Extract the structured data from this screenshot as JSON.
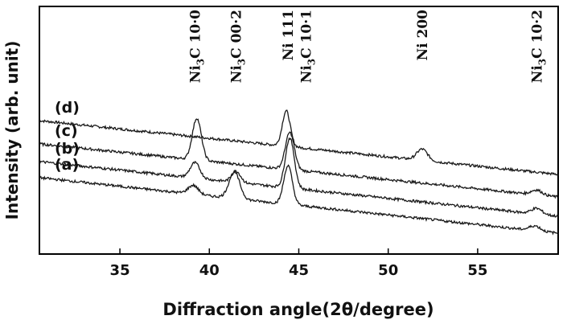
{
  "chart_data": {
    "type": "line",
    "xlabel": "Diffraction angle(2θ/degree)",
    "ylabel": "Intensity (arb. unit)",
    "xlim": [
      30.5,
      59.5
    ],
    "xticks": [
      35,
      40,
      45,
      50,
      55
    ],
    "y_ticks_shown": false,
    "grid": false,
    "legend": "none",
    "peak_labels": [
      {
        "parts": [
          [
            "Ni",
            ""
          ],
          [
            "3",
            "sub"
          ],
          [
            "C 10·0",
            ""
          ]
        ],
        "x": 39.2
      },
      {
        "parts": [
          [
            "Ni",
            ""
          ],
          [
            "3",
            "sub"
          ],
          [
            "C 00·2",
            ""
          ]
        ],
        "x": 41.5
      },
      {
        "parts": [
          [
            "Ni 111",
            ""
          ]
        ],
        "x": 44.4
      },
      {
        "parts": [
          [
            "Ni",
            ""
          ],
          [
            "3",
            "sub"
          ],
          [
            "C 10·1",
            ""
          ]
        ],
        "x": 45.4
      },
      {
        "parts": [
          [
            "Ni 200",
            ""
          ]
        ],
        "x": 51.9
      },
      {
        "parts": [
          [
            "Ni",
            ""
          ],
          [
            "3",
            "sub"
          ],
          [
            "C 10·2",
            ""
          ]
        ],
        "x": 58.3
      }
    ],
    "series": [
      {
        "name": "(d)",
        "baseline": [
          [
            30.5,
            100
          ],
          [
            59.5,
            33
          ]
        ],
        "peaks": [
          [
            44.3,
            44,
            0.22
          ],
          [
            51.9,
            14,
            0.3
          ]
        ]
      },
      {
        "name": "(c)",
        "baseline": [
          [
            30.5,
            71
          ],
          [
            59.5,
            5
          ]
        ],
        "peaks": [
          [
            39.3,
            52,
            0.25
          ],
          [
            44.5,
            46,
            0.25
          ],
          [
            58.3,
            6,
            0.3
          ]
        ]
      },
      {
        "name": "(b)",
        "baseline": [
          [
            30.5,
            49
          ],
          [
            59.5,
            -19
          ]
        ],
        "peaks": [
          [
            39.2,
            19,
            0.27
          ],
          [
            41.5,
            14,
            0.25
          ],
          [
            44.5,
            62,
            0.25
          ],
          [
            58.3,
            7,
            0.3
          ]
        ]
      },
      {
        "name": "(a)",
        "baseline": [
          [
            30.5,
            29
          ],
          [
            59.5,
            -40
          ]
        ],
        "peaks": [
          [
            39.1,
            11,
            0.28
          ],
          [
            41.4,
            33,
            0.3
          ],
          [
            44.4,
            48,
            0.24
          ],
          [
            58.2,
            6,
            0.3
          ]
        ]
      }
    ]
  }
}
